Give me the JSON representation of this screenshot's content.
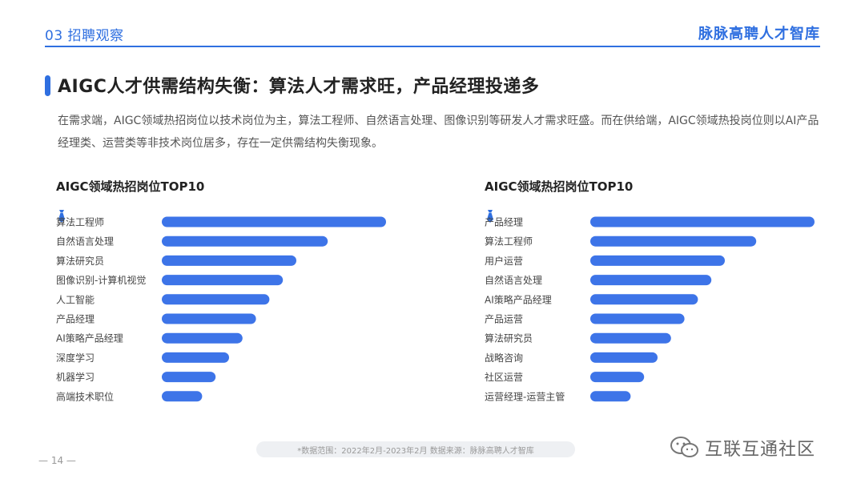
{
  "header": {
    "section": "03 招聘观察",
    "brand": "脉脉高聘人才智库"
  },
  "title": "AIGC人才供需结构失衡：算法人才需求旺，产品经理投递多",
  "summary": "在需求端，AIGC领域热招岗位以技术岗位为主，算法工程师、自然语言处理、图像识别等研发人才需求旺盛。而在供给端，AIGC领域热投岗位则以AI产品经理类、运营类等非技术岗位居多，存在一定供需结构失衡现象。",
  "colors": {
    "accent": "#2f6fe0",
    "bar": "#3d74e8"
  },
  "footnote": "*数据范围：2022年2月-2023年2月     数据来源：脉脉高聘人才智库",
  "page_number": "— 14 —",
  "watermark": "互联互通社区",
  "chart_data": [
    {
      "type": "bar",
      "orientation": "horizontal",
      "title": "AIGC领域热招岗位TOP10",
      "categories": [
        "算法工程师",
        "自然语言处理",
        "算法研究员",
        "图像识别-计算机视觉",
        "人工智能",
        "产品经理",
        "AI策略产品经理",
        "深度学习",
        "机器学习",
        "高端技术职位"
      ],
      "values": [
        100,
        74,
        60,
        54,
        48,
        42,
        36,
        30,
        24,
        18
      ],
      "xlim": [
        0,
        100
      ],
      "axis_labels_shown": false,
      "grid": false
    },
    {
      "type": "bar",
      "orientation": "horizontal",
      "title": "AIGC领域热招岗位TOP10",
      "categories": [
        "产品经理",
        "算法工程师",
        "用户运营",
        "自然语言处理",
        "AI策略产品经理",
        "产品运营",
        "算法研究员",
        "战略咨询",
        "社区运营",
        "运营经理-运营主管"
      ],
      "values": [
        100,
        74,
        60,
        54,
        48,
        42,
        36,
        30,
        24,
        18
      ],
      "xlim": [
        0,
        100
      ],
      "axis_labels_shown": false,
      "grid": false
    }
  ]
}
